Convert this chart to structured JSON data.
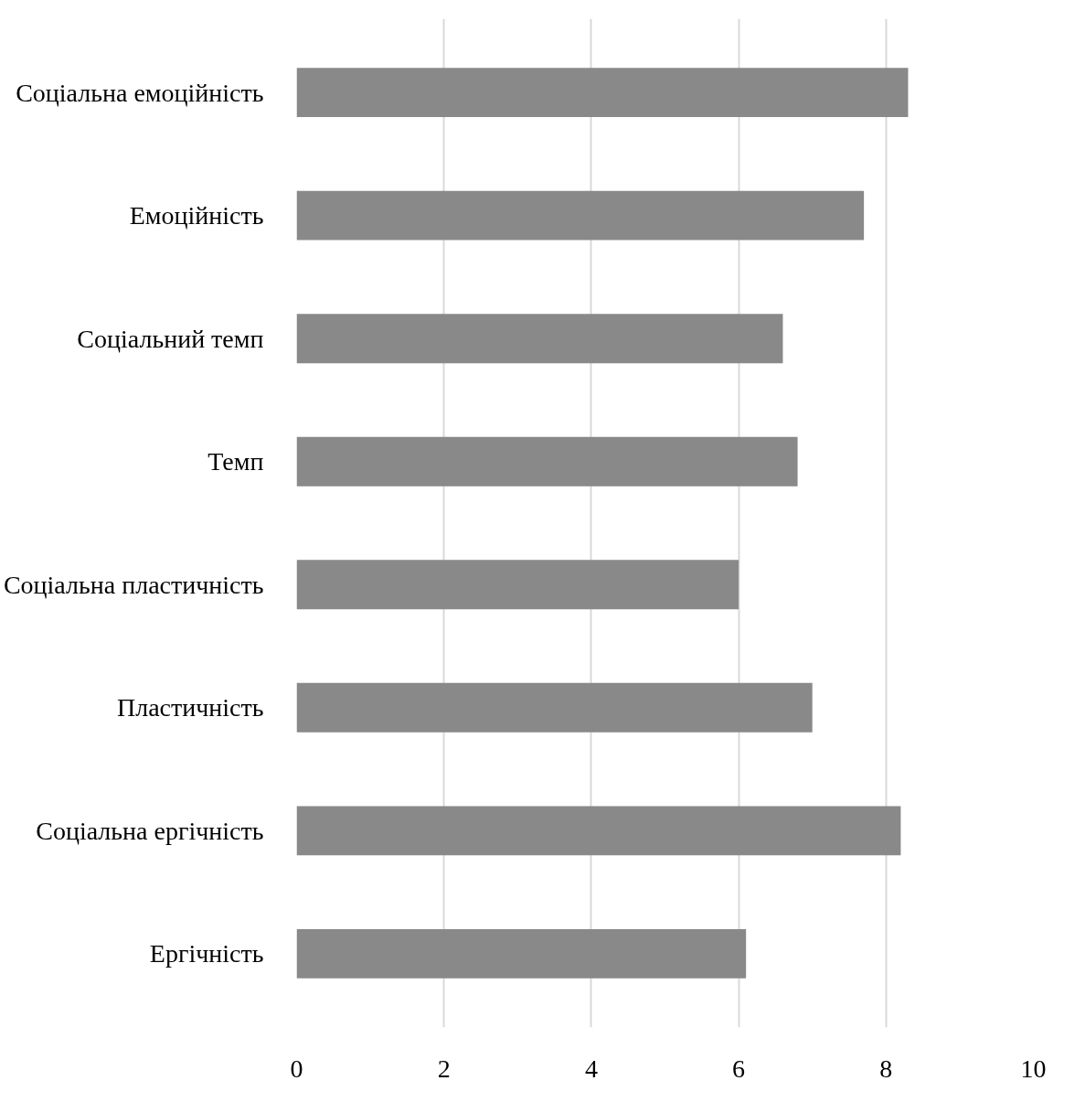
{
  "chart_data": {
    "type": "bar",
    "orientation": "horizontal",
    "categories": [
      "Соціальна емоційність",
      "Емоційність",
      "Соціальний темп",
      "Темп",
      "Соціальна пластичність",
      "Пластичність",
      "Соціальна ергічність",
      "Ергічність"
    ],
    "values": [
      8.3,
      7.7,
      6.6,
      6.8,
      6.0,
      7.0,
      8.2,
      6.1
    ],
    "color": "#898989",
    "xlim": [
      0,
      10
    ],
    "xticks": [
      0,
      2,
      4,
      6,
      8,
      10
    ],
    "grid": "x"
  }
}
